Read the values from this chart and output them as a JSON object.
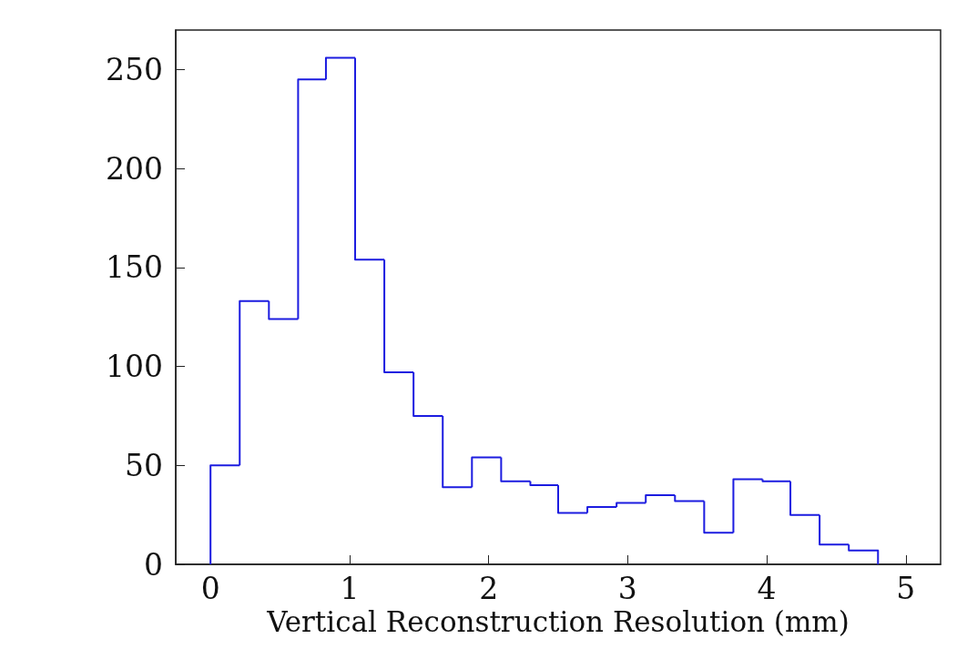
{
  "chart_data": {
    "type": "histogram",
    "xlabel": "Vertical Reconstruction Resolution (mm)",
    "bins": [
      0,
      0.21,
      0.42,
      0.63,
      0.83,
      1.04,
      1.25,
      1.46,
      1.67,
      1.88,
      2.09,
      2.3,
      2.5,
      2.71,
      2.92,
      3.13,
      3.34,
      3.55,
      3.76,
      3.97,
      4.17,
      4.38,
      4.59,
      4.8
    ],
    "values": [
      50,
      133,
      124,
      245,
      256,
      154,
      97,
      75,
      39,
      54,
      42,
      40,
      26,
      29,
      31,
      35,
      32,
      16,
      43,
      42,
      25,
      10,
      7
    ],
    "color": "#1c1ce0",
    "xlim": [
      -0.25,
      5.25
    ],
    "xticks": [
      0,
      1,
      2,
      3,
      4,
      5
    ],
    "ylim": [
      0,
      270
    ],
    "yticks": [
      0,
      50,
      100,
      150,
      200,
      250
    ],
    "grid": false
  }
}
